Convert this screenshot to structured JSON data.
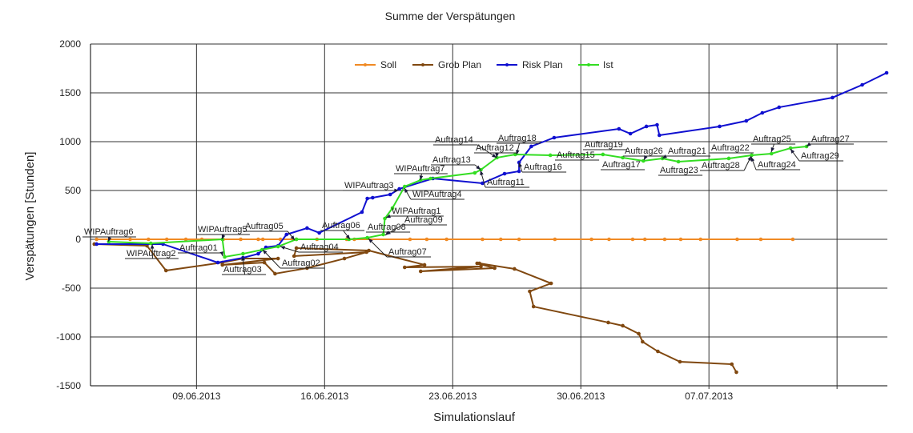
{
  "chart_data": {
    "type": "line",
    "title": "Summe der Verspätungen",
    "xlabel": "Simulationslauf",
    "ylabel": "Verspätungen [Stunden]",
    "xlim": [
      "2013-06-03T05:00",
      "2013-07-16T18:00"
    ],
    "ylim": [
      -1500,
      2000
    ],
    "y_ticks": [
      "2000",
      "1500",
      "1000",
      "500",
      "0",
      "-500",
      "-1000",
      "-1500"
    ],
    "x_ticks": [
      "2013-06-09",
      "2013-06-16",
      "2013-06-23",
      "2013-06-30",
      "2013-07-07",
      "2013-07-14"
    ],
    "x_tick_labels": [
      "09.06.2013",
      "16.06.2013",
      "23.06.2013",
      "30.06.2013",
      "07.07.2013",
      ""
    ],
    "grid": true,
    "legend_position": "top-center",
    "series": [
      {
        "name": "Soll",
        "color": "#f08a24",
        "x": [
          "2013-06-03T13:00",
          "2013-06-05T09:00",
          "2013-06-06T09:00",
          "2013-06-07T09:00",
          "2013-06-08T10:00",
          "2013-06-09T07:00",
          "2013-06-10T11:00",
          "2013-06-11T10:00",
          "2013-06-12T09:00",
          "2013-06-12T15:00",
          "2013-06-13T14:00",
          "2013-06-14T11:00",
          "2013-06-15T14:00",
          "2013-06-17T05:00",
          "2013-06-17T15:00",
          "2013-06-20T16:00",
          "2013-06-21T14:00",
          "2013-06-22T16:00",
          "2013-06-24T15:00",
          "2013-06-25T15:00",
          "2013-06-26T15:00",
          "2013-06-28T14:00",
          "2013-06-30T14:00",
          "2013-07-01T13:00",
          "2013-07-02T20:00",
          "2013-07-03T12:00",
          "2013-07-04T14:00",
          "2013-07-05T11:00",
          "2013-07-06T13:00",
          "2013-07-08T13:00",
          "2013-07-09T20:00",
          "2013-07-11T14:00"
        ],
        "y": [
          0,
          0,
          0,
          0,
          0,
          0,
          0,
          0,
          0,
          0,
          0,
          0,
          0,
          0,
          0,
          0,
          0,
          0,
          0,
          0,
          0,
          0,
          0,
          0,
          0,
          0,
          0,
          0,
          0,
          0,
          0,
          0
        ]
      },
      {
        "name": "Grob Plan",
        "color": "#804810",
        "x": [
          "2013-06-03T10:00",
          "2013-06-06T07:00",
          "2013-06-07T08:00",
          "2013-06-10T10:00",
          "2013-06-11T13:00",
          "2013-06-13T11:00",
          "2013-06-10T10:00",
          "2013-06-12T17:00",
          "2013-06-13T07:00",
          "2013-06-15T01:00",
          "2013-06-17T02:00",
          "2013-06-18T07:00",
          "2013-06-14T08:00",
          "2013-06-14T11:00",
          "2013-06-18T10:00",
          "2013-06-21T11:00",
          "2013-06-20T09:00",
          "2013-06-24T13:00",
          "2013-06-21T06:00",
          "2013-06-25T07:00",
          "2013-06-24T08:00",
          "2013-06-24T11:00",
          "2013-06-26T09:00",
          "2013-06-28T09:00",
          "2013-06-27T05:00",
          "2013-06-27T10:00",
          "2013-07-01T12:00",
          "2013-07-02T07:00",
          "2013-07-03T04:00",
          "2013-07-03T09:00",
          "2013-07-04T05:00",
          "2013-07-05T10:00",
          "2013-07-08T06:00",
          "2013-07-08T12:00"
        ],
        "y": [
          -49,
          -66,
          -320,
          -238,
          -197,
          -197,
          -262,
          -238,
          -352,
          -295,
          -197,
          -131,
          -172,
          -90,
          -115,
          -262,
          -287,
          -279,
          -328,
          -295,
          -246,
          -246,
          -303,
          -451,
          -533,
          -689,
          -852,
          -885,
          -967,
          -1049,
          -1148,
          -1254,
          -1279,
          -1361
        ]
      },
      {
        "name": "Risk Plan",
        "color": "#1010d0",
        "x": [
          "2013-06-03T13:00",
          "2013-06-07T04:00",
          "2013-06-10T04:00",
          "2013-06-11T13:00",
          "2013-06-12T09:00",
          "2013-06-12T19:00",
          "2013-06-13T11:00",
          "2013-06-13T22:00",
          "2013-06-15T01:00",
          "2013-06-15T17:00",
          "2013-06-18T01:00",
          "2013-06-18T08:00",
          "2013-06-18T15:00",
          "2013-06-19T14:00",
          "2013-06-20T02:00",
          "2013-06-21T22:00",
          "2013-06-24T15:00",
          "2013-06-25T20:00",
          "2013-06-26T15:00",
          "2013-06-26T15:00",
          "2013-06-27T07:00",
          "2013-06-28T13:00",
          "2013-07-02T02:00",
          "2013-07-02T17:00",
          "2013-07-03T14:00",
          "2013-07-04T04:00",
          "2013-07-04T07:00",
          "2013-07-07T14:00",
          "2013-07-09T01:00",
          "2013-07-09T22:00",
          "2013-07-10T20:00",
          "2013-07-13T18:00",
          "2013-07-15T09:00",
          "2013-07-16T17:00"
        ],
        "y": [
          -49,
          -49,
          -238,
          -189,
          -148,
          -82,
          -66,
          49,
          115,
          66,
          279,
          418,
          426,
          459,
          516,
          623,
          574,
          672,
          697,
          787,
          951,
          1041,
          1131,
          1082,
          1156,
          1172,
          1066,
          1156,
          1213,
          1295,
          1352,
          1451,
          1582,
          1705
        ]
      },
      {
        "name": "Ist",
        "color": "#33dd22",
        "x": [
          "2013-06-04T05:00",
          "2013-06-06T12:00",
          "2013-06-10T10:00",
          "2013-06-10T13:00",
          "2013-06-11T13:00",
          "2013-06-12T14:00",
          "2013-06-13T11:00",
          "2013-06-14T11:00",
          "2013-06-17T08:00",
          "2013-06-18T08:00",
          "2013-06-19T05:00",
          "2013-06-19T07:00",
          "2013-06-19T17:00",
          "2013-06-20T09:00",
          "2013-06-21T06:00",
          "2013-06-21T19:00",
          "2013-06-24T05:00",
          "2013-06-24T13:00",
          "2013-06-25T10:00",
          "2013-06-26T10:00",
          "2013-06-28T08:00",
          "2013-07-01T05:00",
          "2013-07-02T07:00",
          "2013-07-03T10:00",
          "2013-07-04T11:00",
          "2013-07-05T08:00",
          "2013-07-08T02:00",
          "2013-07-09T08:00",
          "2013-07-10T10:00",
          "2013-07-11T11:00",
          "2013-07-12T08:00"
        ],
        "y": [
          -25,
          -41,
          0,
          -180,
          -148,
          -107,
          -74,
          0,
          0,
          16,
          49,
          213,
          320,
          541,
          607,
          623,
          680,
          713,
          836,
          869,
          861,
          869,
          836,
          803,
          828,
          795,
          828,
          861,
          877,
          934,
          951
        ]
      }
    ],
    "annotations": [
      "WIPAuftrag6",
      "WIPAuftrag2",
      "Auftrag01",
      "WIPAuftrag5",
      "Auftrag05",
      "Auftrag03",
      "Auftrag02",
      "Auftrag04",
      "Auftrag06",
      "Auftrag08",
      "Auftrag07",
      "Auftrag09",
      "WIPAuftrag1",
      "WIPAuftrag3",
      "WIPAuftrag4",
      "WIPAuftrag7",
      "Auftrag13",
      "Auftrag14",
      "Auftrag12",
      "Auftrag18",
      "Auftrag16",
      "Auftrag11",
      "Auftrag15",
      "Auftrag19",
      "Auftrag17",
      "Auftrag26",
      "Auftrag21",
      "Auftrag23",
      "Auftrag22",
      "Auftrag28",
      "Auftrag25",
      "Auftrag24",
      "Auftrag27",
      "Auftrag29"
    ]
  }
}
